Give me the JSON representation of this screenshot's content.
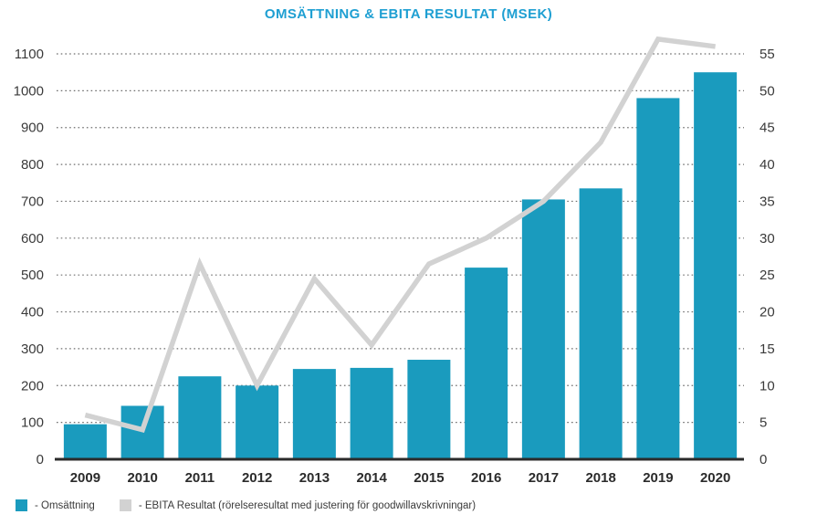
{
  "chart_data": {
    "type": "combo",
    "title": "OMSÄTTNING & EBITA RESULTAT (MSEK)",
    "categories": [
      "2009",
      "2010",
      "2011",
      "2012",
      "2013",
      "2014",
      "2015",
      "2016",
      "2017",
      "2018",
      "2019",
      "2020"
    ],
    "series": [
      {
        "name": "Omsättning",
        "type": "bar",
        "axis": "left",
        "values": [
          95,
          145,
          225,
          200,
          245,
          248,
          270,
          520,
          705,
          735,
          980,
          1050
        ]
      },
      {
        "name": "EBITA Resultat",
        "type": "line",
        "axis": "right",
        "values": [
          6,
          4,
          26.5,
          10,
          24.5,
          15.5,
          26.5,
          30,
          35,
          43,
          57,
          56
        ]
      }
    ],
    "axes": {
      "left": {
        "ticks": [
          0,
          100,
          200,
          300,
          400,
          500,
          600,
          700,
          800,
          900,
          1000,
          1100
        ],
        "range": [
          0,
          1150
        ]
      },
      "right": {
        "ticks": [
          0,
          5,
          10,
          15,
          20,
          25,
          30,
          35,
          40,
          45,
          50,
          55
        ],
        "range": [
          0,
          57.5
        ]
      }
    },
    "grid": "dotted-horizontal",
    "legend_position": "bottom-left"
  },
  "legend": {
    "items": [
      {
        "label": "- Omsättning",
        "swatch": "teal-square"
      },
      {
        "label": "- EBITA Resultat (rörelseresultat med justering för goodwillavskrivningar)",
        "swatch": "gray-square"
      }
    ]
  },
  "colors": {
    "bar": "#1A9BBE",
    "line": "#D2D2D2",
    "title": "#1E9FD2",
    "axis_text": "#3A3A3A",
    "axis_line": "#2B2B2B",
    "grid": "#6E6E6E",
    "background": "#FFFFFF"
  }
}
